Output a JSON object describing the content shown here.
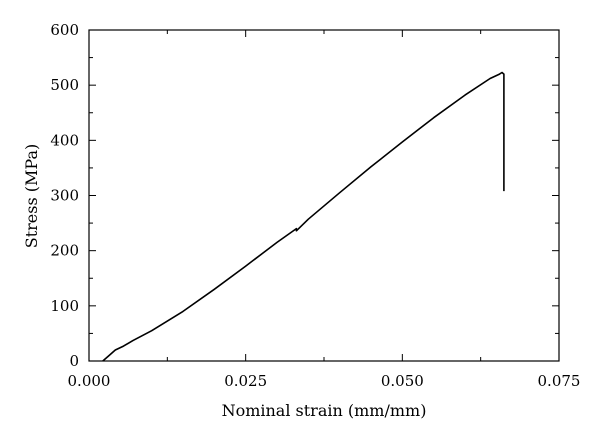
{
  "chart_data": {
    "type": "line",
    "title": "",
    "xlabel": "Nominal strain (mm/mm)",
    "ylabel": "Stress (MPa)",
    "xlim": [
      0.0,
      0.075
    ],
    "ylim": [
      0,
      600
    ],
    "x_ticks": [
      0.0,
      0.025,
      0.05,
      0.075
    ],
    "x_tick_labels": [
      "0.000",
      "0.025",
      "0.050",
      "0.075"
    ],
    "x_minor_ticks": [
      0.0125,
      0.0375,
      0.0625
    ],
    "y_ticks": [
      0,
      100,
      200,
      300,
      400,
      500,
      600
    ],
    "y_tick_labels": [
      "0",
      "100",
      "200",
      "300",
      "400",
      "500",
      "600"
    ],
    "y_minor_ticks": [
      50,
      150,
      250,
      350,
      450,
      550
    ],
    "grid": false,
    "legend": "none",
    "series": [
      {
        "color": "#000000",
        "points": [
          [
            0.0022,
            0
          ],
          [
            0.0032,
            10
          ],
          [
            0.0042,
            20
          ],
          [
            0.0055,
            27
          ],
          [
            0.007,
            37
          ],
          [
            0.01,
            55
          ],
          [
            0.015,
            90
          ],
          [
            0.02,
            130
          ],
          [
            0.025,
            172
          ],
          [
            0.03,
            215
          ],
          [
            0.0331,
            240
          ],
          [
            0.0331,
            236
          ],
          [
            0.035,
            257
          ],
          [
            0.04,
            305
          ],
          [
            0.045,
            352
          ],
          [
            0.05,
            397
          ],
          [
            0.055,
            441
          ],
          [
            0.06,
            482
          ],
          [
            0.064,
            512
          ],
          [
            0.0655,
            520
          ],
          [
            0.0659,
            523
          ],
          [
            0.0662,
            520
          ],
          [
            0.0662,
            308
          ]
        ]
      }
    ]
  }
}
